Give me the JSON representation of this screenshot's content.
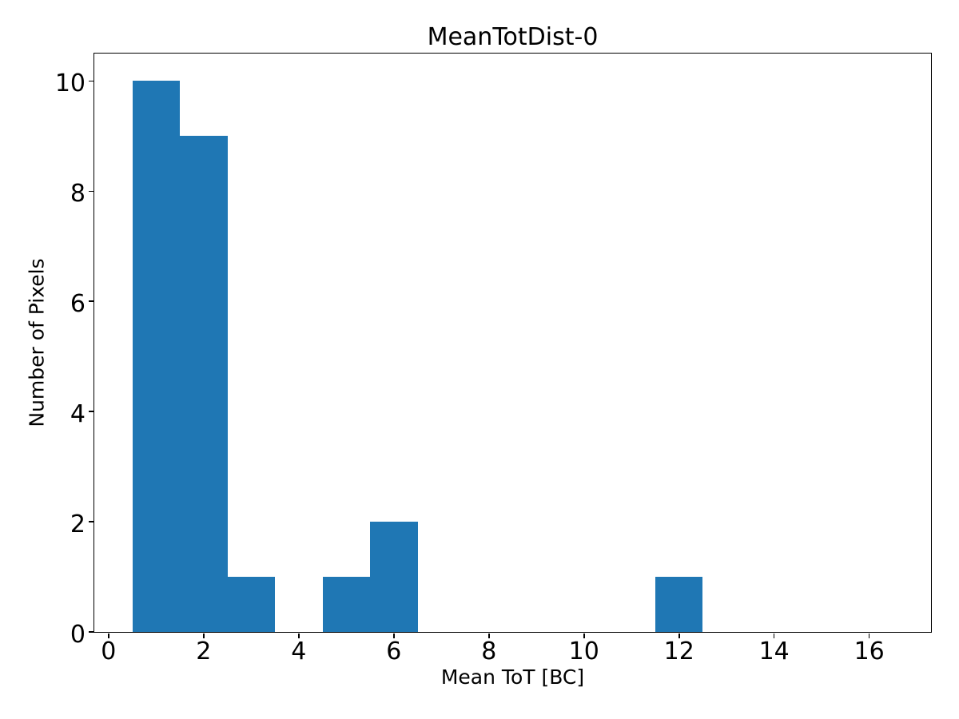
{
  "chart_data": {
    "type": "bar",
    "subtype": "histogram",
    "title": "MeanTotDist-0",
    "xlabel": "Mean ToT [BC]",
    "ylabel": "Number of Pixels",
    "bar_color": "#1f77b4",
    "axis_color": "#000000",
    "background_color": "#ffffff",
    "grid": false,
    "legend": null,
    "xlim": [
      -0.3,
      17.3
    ],
    "ylim": [
      0,
      10.5
    ],
    "xticks": [
      0,
      2,
      4,
      6,
      8,
      10,
      12,
      14,
      16
    ],
    "yticks": [
      0,
      2,
      4,
      6,
      8,
      10
    ],
    "bins": [
      {
        "x0": 0.5,
        "x1": 1.5,
        "count": 10
      },
      {
        "x0": 1.5,
        "x1": 2.5,
        "count": 9
      },
      {
        "x0": 2.5,
        "x1": 3.5,
        "count": 1
      },
      {
        "x0": 3.5,
        "x1": 4.5,
        "count": 0
      },
      {
        "x0": 4.5,
        "x1": 5.5,
        "count": 1
      },
      {
        "x0": 5.5,
        "x1": 6.5,
        "count": 2
      },
      {
        "x0": 6.5,
        "x1": 11.5,
        "count": 0
      },
      {
        "x0": 11.5,
        "x1": 12.5,
        "count": 1
      },
      {
        "x0": 12.5,
        "x1": 16.5,
        "count": 0
      }
    ]
  }
}
